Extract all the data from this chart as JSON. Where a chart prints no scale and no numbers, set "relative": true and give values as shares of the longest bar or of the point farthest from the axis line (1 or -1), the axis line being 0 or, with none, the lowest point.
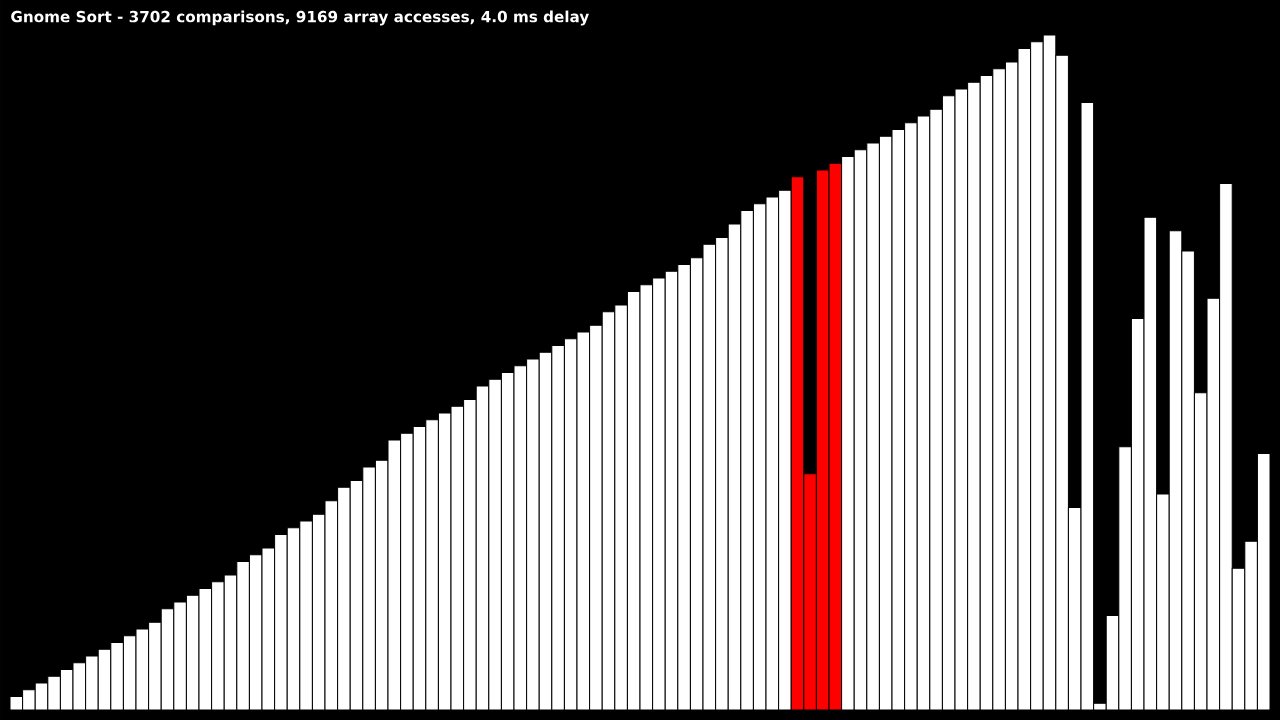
{
  "chart_data": {
    "type": "bar",
    "title": "Gnome Sort - 3702 comparisons, 9169 array accesses, 4.0 ms delay",
    "relative": true,
    "categories": [
      null,
      null,
      null,
      null,
      null,
      null,
      null,
      null,
      null,
      null,
      null,
      null,
      null,
      null,
      null,
      null,
      null,
      null,
      null,
      null,
      null,
      null,
      null,
      null,
      null,
      null,
      null,
      null,
      null,
      null,
      null,
      null,
      null,
      null,
      null,
      null,
      null,
      null,
      null,
      null,
      null,
      null,
      null,
      null,
      null,
      null,
      null,
      null,
      null,
      null,
      null,
      null,
      null,
      null,
      null,
      null,
      null,
      null,
      null,
      null,
      null,
      null,
      null,
      null,
      null,
      null,
      null,
      null,
      null,
      null,
      null,
      null,
      null,
      null,
      null,
      null,
      null,
      null,
      null,
      null,
      null,
      null,
      null,
      null,
      null,
      null,
      null,
      null,
      null,
      null,
      null,
      null,
      null,
      null,
      null,
      null,
      null,
      null,
      null,
      null
    ],
    "values": [
      0.02,
      0.03,
      0.04,
      0.05,
      0.06,
      0.07,
      0.08,
      0.09,
      0.1,
      0.11,
      0.12,
      0.13,
      0.15,
      0.16,
      0.17,
      0.18,
      0.19,
      0.2,
      0.22,
      0.23,
      0.24,
      0.26,
      0.27,
      0.28,
      0.29,
      0.31,
      0.33,
      0.34,
      0.36,
      0.37,
      0.4,
      0.41,
      0.42,
      0.43,
      0.44,
      0.45,
      0.46,
      0.48,
      0.49,
      0.5,
      0.51,
      0.52,
      0.53,
      0.54,
      0.55,
      0.56,
      0.57,
      0.59,
      0.6,
      0.62,
      0.63,
      0.64,
      0.65,
      0.66,
      0.67,
      0.69,
      0.7,
      0.72,
      0.74,
      0.75,
      0.76,
      0.77,
      0.79,
      0.35,
      0.8,
      0.81,
      0.82,
      0.83,
      0.84,
      0.85,
      0.86,
      0.87,
      0.88,
      0.89,
      0.91,
      0.92,
      0.93,
      0.94,
      0.95,
      0.96,
      0.98,
      0.99,
      1.0,
      0.97,
      0.3,
      0.9,
      0.01,
      0.14,
      0.39,
      0.58,
      0.73,
      0.32,
      0.71,
      0.68,
      0.47,
      0.61,
      0.78,
      0.21,
      0.25,
      0.38
    ],
    "colors": [
      "#ffffff",
      "#ffffff",
      "#ffffff",
      "#ffffff",
      "#ffffff",
      "#ffffff",
      "#ffffff",
      "#ffffff",
      "#ffffff",
      "#ffffff",
      "#ffffff",
      "#ffffff",
      "#ffffff",
      "#ffffff",
      "#ffffff",
      "#ffffff",
      "#ffffff",
      "#ffffff",
      "#ffffff",
      "#ffffff",
      "#ffffff",
      "#ffffff",
      "#ffffff",
      "#ffffff",
      "#ffffff",
      "#ffffff",
      "#ffffff",
      "#ffffff",
      "#ffffff",
      "#ffffff",
      "#ffffff",
      "#ffffff",
      "#ffffff",
      "#ffffff",
      "#ffffff",
      "#ffffff",
      "#ffffff",
      "#ffffff",
      "#ffffff",
      "#ffffff",
      "#ffffff",
      "#ffffff",
      "#ffffff",
      "#ffffff",
      "#ffffff",
      "#ffffff",
      "#ffffff",
      "#ffffff",
      "#ffffff",
      "#ffffff",
      "#ffffff",
      "#ffffff",
      "#ffffff",
      "#ffffff",
      "#ffffff",
      "#ffffff",
      "#ffffff",
      "#ffffff",
      "#ffffff",
      "#ffffff",
      "#ffffff",
      "#ffffff",
      "#ff0000",
      "#ff0000",
      "#ff0000",
      "#ff0000",
      "#ffffff",
      "#ffffff",
      "#ffffff",
      "#ffffff",
      "#ffffff",
      "#ffffff",
      "#ffffff",
      "#ffffff",
      "#ffffff",
      "#ffffff",
      "#ffffff",
      "#ffffff",
      "#ffffff",
      "#ffffff",
      "#ffffff",
      "#ffffff",
      "#ffffff",
      "#ffffff",
      "#ffffff",
      "#ffffff",
      "#ffffff",
      "#ffffff",
      "#ffffff",
      "#ffffff",
      "#ffffff",
      "#ffffff",
      "#ffffff",
      "#ffffff",
      "#ffffff",
      "#ffffff",
      "#ffffff",
      "#ffffff",
      "#ffffff",
      "#ffffff"
    ]
  }
}
